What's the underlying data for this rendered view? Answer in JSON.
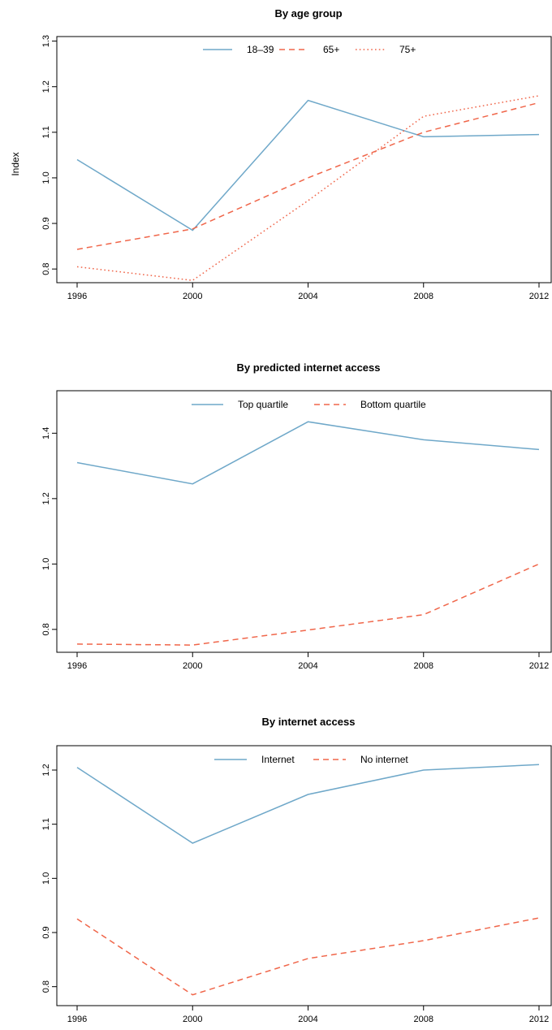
{
  "colors": {
    "blue": "#6fa8c9",
    "red": "#f0664a"
  },
  "chart_data": [
    {
      "type": "line",
      "title": "By age group",
      "ylabel": "Index",
      "xlabel": "",
      "x": [
        1996,
        2000,
        2004,
        2008,
        2012
      ],
      "xticks": [
        "1996",
        "2000",
        "2004",
        "2008",
        "2012"
      ],
      "ylim": [
        0.77,
        1.31
      ],
      "yticks": [
        "0.8",
        "0.9",
        "1.0",
        "1.1",
        "1.2",
        "1.3"
      ],
      "ytick_values": [
        0.8,
        0.9,
        1.0,
        1.1,
        1.2,
        1.3
      ],
      "legend": "top-center",
      "grid": false,
      "series": [
        {
          "name": "18–39",
          "color": "#6fa8c9",
          "dash": "solid",
          "values": [
            1.04,
            0.885,
            1.17,
            1.09,
            1.095
          ]
        },
        {
          "name": "65+",
          "color": "#f0664a",
          "dash": "dashed",
          "values": [
            0.843,
            0.888,
            1.0,
            1.1,
            1.165
          ]
        },
        {
          "name": "75+",
          "color": "#f0664a",
          "dash": "dotted",
          "values": [
            0.805,
            0.775,
            0.95,
            1.135,
            1.18
          ]
        }
      ]
    },
    {
      "type": "line",
      "title": "By predicted internet access",
      "ylabel": "",
      "xlabel": "",
      "x": [
        1996,
        2000,
        2004,
        2008,
        2012
      ],
      "xticks": [
        "1996",
        "2000",
        "2004",
        "2008",
        "2012"
      ],
      "ylim": [
        0.73,
        1.53
      ],
      "yticks": [
        "0.8",
        "1.0",
        "1.2",
        "1.4"
      ],
      "ytick_values": [
        0.8,
        1.0,
        1.2,
        1.4
      ],
      "legend": "top-center",
      "grid": false,
      "series": [
        {
          "name": "Top quartile",
          "color": "#6fa8c9",
          "dash": "solid",
          "values": [
            1.31,
            1.245,
            1.435,
            1.38,
            1.35
          ]
        },
        {
          "name": "Bottom quartile",
          "color": "#f0664a",
          "dash": "dashed",
          "values": [
            0.755,
            0.752,
            0.798,
            0.845,
            1.0
          ]
        }
      ]
    },
    {
      "type": "line",
      "title": "By internet access",
      "ylabel": "",
      "xlabel": "",
      "x": [
        1996,
        2000,
        2004,
        2008,
        2012
      ],
      "xticks": [
        "1996",
        "2000",
        "2004",
        "2008",
        "2012"
      ],
      "ylim": [
        0.765,
        1.245
      ],
      "yticks": [
        "0.8",
        "0.9",
        "1.0",
        "1.1",
        "1.2"
      ],
      "ytick_values": [
        0.8,
        0.9,
        1.0,
        1.1,
        1.2
      ],
      "legend": "top-center",
      "grid": false,
      "series": [
        {
          "name": "Internet",
          "color": "#6fa8c9",
          "dash": "solid",
          "values": [
            1.205,
            1.065,
            1.155,
            1.2,
            1.21
          ]
        },
        {
          "name": "No internet",
          "color": "#f0664a",
          "dash": "dashed",
          "values": [
            0.925,
            0.785,
            0.852,
            0.885,
            0.927
          ]
        }
      ]
    }
  ]
}
